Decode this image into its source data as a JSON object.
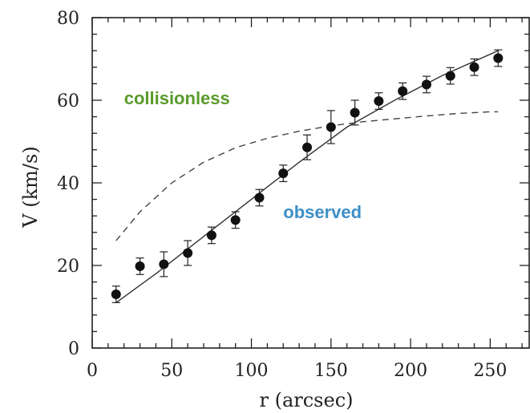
{
  "chart_data": {
    "type": "scatter",
    "xlabel": "r (arcsec)",
    "ylabel": "V (km/s)",
    "xlim": [
      0,
      275
    ],
    "ylim": [
      0,
      80
    ],
    "xticks": [
      0,
      50,
      100,
      150,
      200,
      250
    ],
    "yticks": [
      0,
      20,
      40,
      60,
      80
    ],
    "grid": false,
    "series": [
      {
        "name": "observed",
        "kind": "points_with_errorbars",
        "x": [
          15,
          30,
          45,
          60,
          75,
          90,
          105,
          120,
          135,
          150,
          165,
          180,
          195,
          210,
          225,
          240,
          255
        ],
        "y": [
          13,
          19.8,
          20.3,
          23,
          27.3,
          31,
          36.4,
          42.3,
          48.6,
          53.5,
          57,
          59.8,
          62.2,
          63.8,
          65.9,
          68,
          70.2
        ],
        "yerr": [
          2,
          2,
          3,
          3,
          2,
          2,
          2,
          2,
          3,
          4,
          3,
          2,
          2,
          2,
          2,
          2,
          2
        ]
      },
      {
        "name": "observed fit",
        "kind": "solid_line",
        "x": [
          15,
          40,
          70,
          100,
          130,
          160,
          190,
          220,
          255
        ],
        "y": [
          11,
          18,
          27,
          36,
          45,
          53.5,
          60,
          66,
          72
        ]
      },
      {
        "name": "collisionless",
        "kind": "dashed_line",
        "x": [
          15,
          30,
          50,
          70,
          90,
          110,
          130,
          150,
          170,
          190,
          210,
          230,
          250,
          255
        ],
        "y": [
          26,
          33,
          40,
          45,
          48.5,
          50.8,
          52.5,
          53.8,
          54.8,
          55.5,
          56.2,
          56.8,
          57.2,
          57.2
        ]
      }
    ],
    "annotations": [
      {
        "text": "collisionless",
        "color": "#5a9a2a",
        "x": 20,
        "y": 59
      },
      {
        "text": "observed",
        "color": "#3d8fc7",
        "x": 120,
        "y": 31.5
      }
    ]
  }
}
